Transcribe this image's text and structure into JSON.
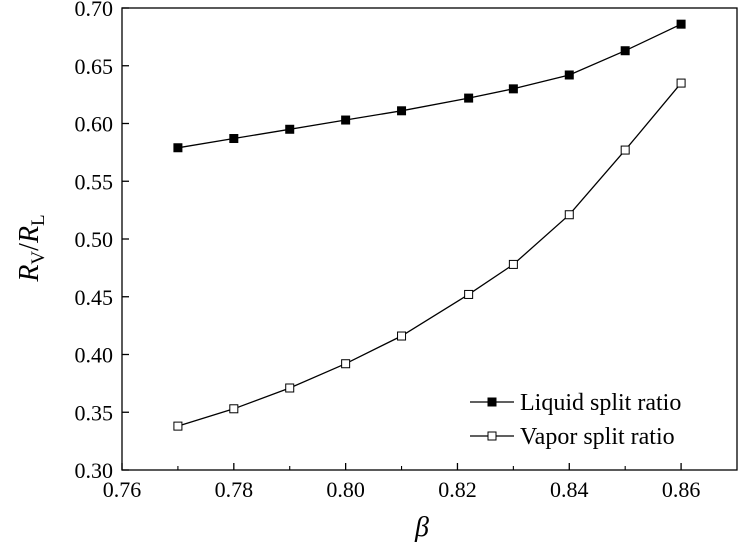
{
  "chart_data": {
    "type": "line",
    "title": "",
    "xlabel": "β",
    "ylabel": {
      "main": "R",
      "sub1": "V",
      "slash": "/",
      "main2": "R",
      "sub2": "L"
    },
    "xlim": [
      0.76,
      0.87
    ],
    "ylim": [
      0.3,
      0.7
    ],
    "xticks": [
      0.76,
      0.78,
      0.8,
      0.82,
      0.84,
      0.86
    ],
    "xtick_labels": [
      "0.76",
      "0.78",
      "0.80",
      "0.82",
      "0.84",
      "0.86"
    ],
    "yticks": [
      0.3,
      0.35,
      0.4,
      0.45,
      0.5,
      0.55,
      0.6,
      0.65,
      0.7
    ],
    "ytick_labels": [
      "0.30",
      "0.35",
      "0.40",
      "0.45",
      "0.50",
      "0.55",
      "0.60",
      "0.65",
      "0.70"
    ],
    "grid": false,
    "legend_position": "bottom-right",
    "series": [
      {
        "name": "Liquid split ratio",
        "marker": "filled-square",
        "color": "#000000",
        "x": [
          0.77,
          0.78,
          0.79,
          0.8,
          0.81,
          0.822,
          0.83,
          0.84,
          0.85,
          0.86
        ],
        "y": [
          0.579,
          0.587,
          0.595,
          0.603,
          0.611,
          0.622,
          0.63,
          0.642,
          0.663,
          0.686
        ]
      },
      {
        "name": "Vapor split ratio",
        "marker": "open-square",
        "color": "#000000",
        "x": [
          0.77,
          0.78,
          0.79,
          0.8,
          0.81,
          0.822,
          0.83,
          0.84,
          0.85,
          0.86
        ],
        "y": [
          0.338,
          0.353,
          0.371,
          0.392,
          0.416,
          0.452,
          0.478,
          0.521,
          0.577,
          0.635
        ]
      }
    ]
  }
}
